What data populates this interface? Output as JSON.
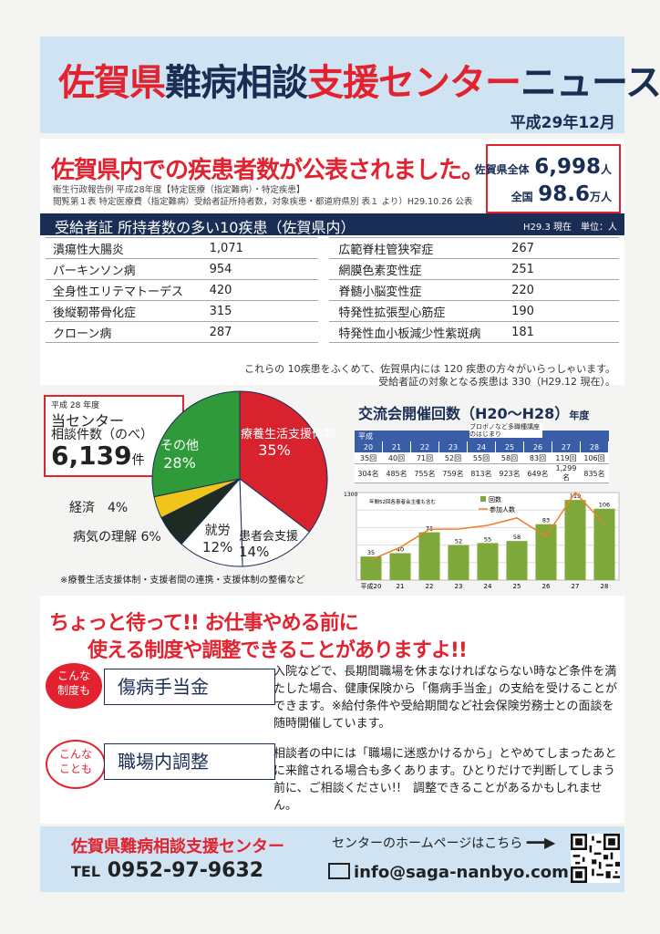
{
  "header": {
    "title_a": "佐賀県",
    "title_b": "難病相談",
    "title_c": "支援センター",
    "title_d": "ニュース",
    "date": "平成29年12月"
  },
  "intro": {
    "headline": "佐賀県内での疾患者数が公表されました。",
    "source1": "衛生行政報告例 平成28年度【特定医療（指定難病）・特定疾患】",
    "source2": "閲覧第１表 特定医療費（指定難病）受給者証所持者数，対象疾患・都道府県別 表１ より）H29.10.26 公表",
    "total_label": "佐賀県全体",
    "total_value": "6,998",
    "total_unit": "人",
    "national_label": "全国",
    "national_value": "98.6",
    "national_unit": "万人"
  },
  "table": {
    "title": "受給者証 所持者数の多い10疾患（佐賀県内）",
    "note": "H29.3 現在　単位：人",
    "rows": [
      {
        "l": "潰瘍性大腸炎",
        "lv": "1,071",
        "r": "広範脊柱管狭窄症",
        "rv": "267"
      },
      {
        "l": "パーキンソン病",
        "lv": "954",
        "r": "網膜色素変性症",
        "rv": "251"
      },
      {
        "l": "全身性エリテマトーデス",
        "lv": "420",
        "r": "脊髄小脳変性症",
        "rv": "220"
      },
      {
        "l": "後縦靭帯骨化症",
        "lv": "315",
        "r": "特発性拡張型心筋症",
        "rv": "190"
      },
      {
        "l": "クローン病",
        "lv": "287",
        "r": "特発性血小板減少性紫斑病",
        "rv": "181"
      }
    ],
    "foot1": "これらの 10疾患をふくめて、佐賀県内には 120 疾患の方々がいらっしゃいます。",
    "foot2": "受給者証の対象となる疾患は 330（H29.12 現在）。"
  },
  "consult": {
    "year": "平成 28 年度",
    "label1": "当センター",
    "label2": "相談件数（のべ）",
    "count": "6,139",
    "unit": "件",
    "footnote": "※療養生活支援体制・支援者間の連携・支援体制の整備など"
  },
  "chart_data": [
    {
      "type": "pie",
      "slices": [
        {
          "name": "療養生活支援体制",
          "value": 35,
          "label": "35%",
          "color": "#d8222d"
        },
        {
          "name": "患者会支援",
          "value": 14,
          "label": "14%",
          "color": "#ffffff"
        },
        {
          "name": "就労",
          "value": 12,
          "label": "12%",
          "color": "#ffffff"
        },
        {
          "name": "病気の理解",
          "value": 6,
          "label": "6%",
          "color": "#1d2b22"
        },
        {
          "name": "経済",
          "value": 4,
          "label": "4%",
          "color": "#f0c419"
        },
        {
          "name": "その他",
          "value": 28,
          "label": "28%",
          "color": "#2e9a3a"
        }
      ]
    },
    {
      "type": "bar",
      "title": "交流会開催回数（H20〜H28）",
      "title_suffix": "年度",
      "categories": [
        "平成20",
        "21",
        "22",
        "23",
        "24",
        "25",
        "26",
        "27",
        "28"
      ],
      "table_head": "平成",
      "table_years": [
        "20",
        "21",
        "22",
        "23",
        "24",
        "25",
        "26",
        "27",
        "28"
      ],
      "table_counts": [
        "35回",
        "40回",
        "71回",
        "52回",
        "55回",
        "58回",
        "83回",
        "119回",
        "106回"
      ],
      "table_people": [
        "304名",
        "485名",
        "755名",
        "759名",
        "813名",
        "923名",
        "649名",
        "1,299名",
        "835名"
      ],
      "table_note": "ブロボノなど多職種講座のはじまり",
      "series": [
        {
          "name": "回数",
          "values": [
            35,
            40,
            71,
            52,
            55,
            58,
            83,
            119,
            106
          ],
          "color": "#7fa83a"
        },
        {
          "name": "参加人数",
          "values": [
            304,
            485,
            755,
            759,
            813,
            923,
            649,
            1299,
            835
          ],
          "color": "#f07d2a"
        }
      ],
      "ylim": [
        0,
        1300
      ],
      "ymax_label": "1300",
      "annotation": "年間52回各患者会主催も含む"
    }
  ],
  "notice": {
    "line1": "ちょっと待って!! お仕事やめる前に",
    "line2": "使える制度や調整できることがありますよ!!"
  },
  "topics": [
    {
      "badge1": "こんな",
      "badge2": "制度も",
      "title": "傷病手当金",
      "text": "入院などで、長期間職場を休まなければならない時など条件を満たした場合、健康保険から「傷病手当金」の支給を受けることができます。※給付条件や受給期間など社会保険労務士との面談を随時開催しています。"
    },
    {
      "badge1": "こんな",
      "badge2": "ことも",
      "title": "職場内調整",
      "text": "相談者の中には「職場に迷惑かけるから」とやめてしまったあとに来館される場合も多くあります。ひとりだけで判断してしまう前に、ご相談ください!!　調整できることがあるかもしれません。"
    }
  ],
  "footer": {
    "name": "佐賀県難病相談支援センター",
    "tel_label": "TEL",
    "tel": "0952-97-9632",
    "hp": "センターのホームページはこちら",
    "email": "info@saga-nanbyo.com"
  }
}
